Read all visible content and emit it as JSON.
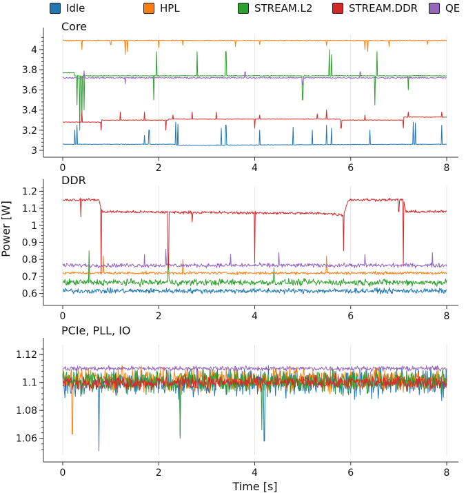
{
  "chart_data": {
    "type": "line",
    "legend_position": "top",
    "ylabel": "Power [W]",
    "xlabel": "Time [s]",
    "grid": true,
    "series_styles": [
      {
        "name": "Idle",
        "color": "#1f77b4"
      },
      {
        "name": "HPL",
        "color": "#ff7f0e"
      },
      {
        "name": "STREAM.L2",
        "color": "#2ca02c"
      },
      {
        "name": "STREAM.DDR",
        "color": "#d62728"
      },
      {
        "name": "QE",
        "color": "#9467bd"
      }
    ],
    "panels": [
      {
        "title": "Core",
        "xlim": [
          0,
          8
        ],
        "xticks": [
          0,
          2,
          4,
          6,
          8
        ],
        "ylim": [
          3.0,
          4.15
        ],
        "yticks": [
          3,
          3.2,
          3.4,
          3.6,
          3.8,
          4
        ],
        "ytick_labels": [
          "3",
          "3.2",
          "3.4",
          "3.6",
          "3.8",
          "4"
        ],
        "series": [
          {
            "name": "Idle",
            "base": 3.06,
            "noise": 0.004,
            "x": [
              0,
              0.8,
              2.3,
              2.4,
              7.3,
              7.4,
              8
            ],
            "y": [
              3.06,
              3.06,
              3.06,
              3.05,
              3.06,
              3.06,
              3.06
            ],
            "spikes_x": [
              0.25,
              0.3,
              1.7,
              1.8,
              2.35,
              2.4,
              3.3,
              3.4,
              4.1,
              4.8,
              5.2,
              5.5,
              5.6,
              6.4,
              7.3,
              7.35,
              7.9
            ],
            "spikes_y": [
              3.2,
              3.25,
              3.15,
              3.2,
              3.28,
              3.26,
              3.22,
              3.25,
              3.2,
              3.23,
              3.2,
              3.25,
              3.22,
              3.2,
              3.28,
              3.27,
              3.25
            ]
          },
          {
            "name": "HPL",
            "base": 4.09,
            "noise": 0.006,
            "x": [
              0,
              8
            ],
            "y": [
              4.09,
              4.09
            ],
            "spikes_x": [
              0.4,
              1.0,
              1.3,
              1.35,
              2.0,
              2.5,
              3.6,
              4.1,
              5.5,
              6.3,
              6.35,
              6.8,
              7.6
            ],
            "spikes_y": [
              4.0,
              4.05,
              3.95,
              3.98,
              4.02,
              4.04,
              4.03,
              4.05,
              4.04,
              4.0,
              3.98,
              4.03,
              4.05
            ]
          },
          {
            "name": "STREAM.L2",
            "base": 3.74,
            "noise": 0.005,
            "x": [
              0,
              0.25,
              0.25,
              8
            ],
            "y": [
              3.77,
              3.77,
              3.74,
              3.74
            ],
            "spikes_x": [
              0.3,
              0.35,
              0.4,
              0.45,
              1.9,
              1.95,
              2.8,
              3.4,
              5.0,
              5.55,
              5.6,
              6.5,
              6.55,
              7.2
            ],
            "spikes_y": [
              3.45,
              3.2,
              3.3,
              3.4,
              3.5,
              3.98,
              3.98,
              3.98,
              3.5,
              4.0,
              3.95,
              3.45,
              3.98,
              3.6
            ]
          },
          {
            "name": "STREAM.DDR",
            "base": 3.3,
            "noise": 0.004,
            "x": [
              0,
              0.8,
              0.8,
              2.2,
              2.2,
              5.8,
              5.8,
              7.1,
              7.1,
              8
            ],
            "y": [
              3.28,
              3.28,
              3.3,
              3.3,
              3.31,
              3.31,
              3.3,
              3.3,
              3.33,
              3.33
            ],
            "spikes_x": [
              0.4,
              0.8,
              1.2,
              1.7,
              2.15,
              2.3,
              2.7,
              3.2,
              4.0,
              4.1,
              5.3,
              5.5,
              5.8,
              6.3,
              7.1,
              7.2,
              7.9
            ],
            "spikes_y": [
              3.38,
              3.2,
              3.38,
              3.38,
              3.2,
              3.35,
              3.38,
              3.38,
              3.22,
              3.35,
              3.36,
              3.4,
              3.22,
              3.35,
              3.22,
              3.38,
              3.38
            ]
          },
          {
            "name": "QE",
            "base": 3.72,
            "noise": 0.012,
            "x": [
              0,
              8
            ],
            "y": [
              3.72,
              3.72
            ],
            "spikes_x": [
              0.45,
              1.3,
              3.8,
              5.0,
              6.2
            ],
            "spikes_y": [
              3.79,
              3.66,
              3.78,
              3.65,
              3.78
            ]
          }
        ]
      },
      {
        "title": "DDR",
        "xlim": [
          0,
          8
        ],
        "xticks": [
          0,
          2,
          4,
          6,
          8
        ],
        "ylim": [
          0.57,
          1.23
        ],
        "yticks": [
          0.6,
          0.7,
          0.8,
          0.9,
          1.0,
          1.1,
          1.2
        ],
        "ytick_labels": [
          "0.6",
          "0.7",
          "0.8",
          "0.9",
          "1",
          "1.1",
          "1.2"
        ],
        "series": [
          {
            "name": "Idle",
            "base": 0.615,
            "noise": 0.022,
            "x": [
              0,
              8
            ],
            "y": [
              0.615,
              0.615
            ],
            "spikes_x": [],
            "spikes_y": []
          },
          {
            "name": "STREAM.L2",
            "base": 0.665,
            "noise": 0.028,
            "x": [
              0,
              8
            ],
            "y": [
              0.665,
              0.665
            ],
            "spikes_x": [
              0.55,
              2.2,
              4.4
            ],
            "spikes_y": [
              0.85,
              0.76,
              0.75
            ]
          },
          {
            "name": "HPL",
            "base": 0.72,
            "noise": 0.012,
            "x": [
              0,
              8
            ],
            "y": [
              0.72,
              0.72
            ],
            "spikes_x": [
              0.85,
              2.5,
              5.5
            ],
            "spikes_y": [
              0.82,
              0.8,
              0.82
            ]
          },
          {
            "name": "QE",
            "base": 0.765,
            "noise": 0.018,
            "x": [
              0,
              8
            ],
            "y": [
              0.765,
              0.765
            ],
            "spikes_x": [
              1.7,
              2.15,
              3.5,
              4.5,
              6.3,
              7.7
            ],
            "spikes_y": [
              0.83,
              0.86,
              0.83,
              0.84,
              0.83,
              0.84
            ]
          },
          {
            "name": "STREAM.DDR",
            "base": 1.08,
            "noise": 0.012,
            "x": [
              0,
              0.75,
              0.82,
              5.5,
              5.85,
              5.95,
              7.1,
              7.15,
              8
            ],
            "y": [
              1.15,
              1.15,
              1.08,
              1.07,
              1.06,
              1.15,
              1.15,
              1.08,
              1.08
            ],
            "spikes_x": [
              0.38,
              0.8,
              2.2,
              2.7,
              4.0,
              5.85,
              7.0,
              7.1
            ],
            "spikes_y": [
              1.05,
              0.72,
              0.75,
              1.02,
              0.78,
              0.85,
              1.08,
              0.76
            ]
          }
        ]
      },
      {
        "title": "PCIe, PLL, IO",
        "xlim": [
          0,
          8
        ],
        "xticks": [
          0,
          2,
          4,
          6,
          8
        ],
        "ylim": [
          1.048,
          1.127
        ],
        "yticks": [
          1.06,
          1.08,
          1.1,
          1.12
        ],
        "ytick_labels": [
          "1.06",
          "1.08",
          "1.1",
          "1.12"
        ],
        "series": [
          {
            "name": "Idle",
            "base": 1.1,
            "noise": 0.014,
            "x": [
              0,
              8
            ],
            "y": [
              1.1,
              1.1
            ],
            "spikes_x": [
              0.75,
              2.45,
              4.2
            ],
            "spikes_y": [
              1.051,
              1.062,
              1.058
            ]
          },
          {
            "name": "HPL",
            "base": 1.102,
            "noise": 0.012,
            "x": [
              0,
              8
            ],
            "y": [
              1.102,
              1.102
            ],
            "spikes_x": [
              0.2
            ],
            "spikes_y": [
              1.063
            ]
          },
          {
            "name": "STREAM.L2",
            "base": 1.101,
            "noise": 0.012,
            "x": [
              0,
              8
            ],
            "y": [
              1.101,
              1.101
            ],
            "spikes_x": [
              2.45,
              4.15
            ],
            "spikes_y": [
              1.06,
              1.066
            ]
          },
          {
            "name": "STREAM.DDR",
            "base": 1.1,
            "noise": 0.007,
            "x": [
              0,
              8
            ],
            "y": [
              1.1,
              1.1
            ],
            "spikes_x": [],
            "spikes_y": []
          },
          {
            "name": "QE",
            "base": 1.11,
            "noise": 0.0025,
            "x": [
              0,
              8
            ],
            "y": [
              1.11,
              1.11
            ],
            "spikes_x": [
              2.8,
              6.2
            ],
            "spikes_y": [
              1.1,
              1.102
            ]
          }
        ]
      }
    ]
  }
}
